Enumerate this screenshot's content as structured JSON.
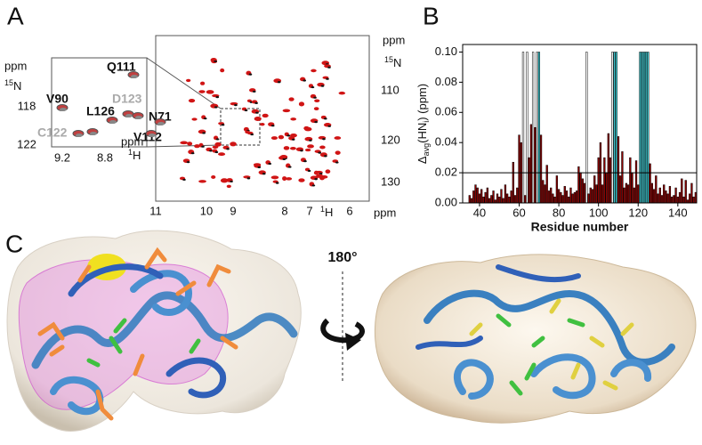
{
  "panel_labels": [
    "A",
    "B",
    "C"
  ],
  "spectrum": {
    "x_ticks": [
      11,
      10,
      9,
      8,
      7,
      6
    ],
    "y_ticks": [
      110,
      120,
      130
    ],
    "unit": "ppm",
    "h_nucleus": [
      "1",
      "H"
    ],
    "n_nucleus": [
      "15",
      "N"
    ]
  },
  "inset": {
    "x_ticks": [
      9.2,
      8.8
    ],
    "y_ticks": [
      118,
      122
    ],
    "unit": "ppm",
    "h_nucleus": [
      "1",
      "H"
    ],
    "n_nucleus": [
      "15",
      "N"
    ],
    "residues": [
      "Q111",
      "V90",
      "D123",
      "L126",
      "N71",
      "C122",
      "V112"
    ]
  },
  "chart_data": {
    "type": "bar",
    "x_label": "Residue number",
    "y_label": [
      "Δ",
      "avg",
      "(HN",
      "i",
      ") (ppm)"
    ],
    "xlim": [
      31.5,
      149.5
    ],
    "ylim": [
      0,
      0.105
    ],
    "xticks": [
      40,
      60,
      80,
      100,
      120,
      140
    ],
    "yticks": [
      {
        "value": 0,
        "label": "0.00"
      },
      {
        "value": 0.02,
        "label": "0.02"
      },
      {
        "value": 0.04,
        "label": "0.04"
      },
      {
        "value": 0.06,
        "label": "0.06"
      },
      {
        "value": 0.08,
        "label": "0.08"
      },
      {
        "value": 0.1,
        "label": "0.10"
      }
    ],
    "threshold": 0.02,
    "edge_color": "#000000",
    "series": [
      {
        "color": "#8b0000",
        "x": [
          35,
          36,
          37,
          38,
          39,
          40,
          41,
          42,
          43,
          44,
          45,
          46,
          47,
          48,
          49,
          50,
          51,
          52,
          53,
          54,
          55,
          56,
          57,
          58,
          59,
          60,
          61,
          63,
          65,
          66,
          68,
          71,
          72,
          73,
          74,
          75,
          76,
          77,
          78,
          79,
          80,
          81,
          82,
          83,
          84,
          85,
          86,
          87,
          88,
          89,
          90,
          91,
          92,
          93,
          95,
          96,
          97,
          98,
          99,
          100,
          101,
          102,
          103,
          104,
          105,
          106,
          110,
          111,
          112,
          113,
          114,
          115,
          116,
          117,
          118,
          119,
          120,
          126,
          127,
          128,
          129,
          130,
          131,
          132,
          133,
          134,
          135,
          136,
          137,
          138,
          139,
          140,
          141,
          142,
          143,
          144,
          145,
          146,
          147,
          148,
          149
        ],
        "values": [
          0.005,
          0.003,
          0.008,
          0.012,
          0.01,
          0.006,
          0.009,
          0.004,
          0.007,
          0.01,
          0.003,
          0.005,
          0.008,
          0.002,
          0.006,
          0.004,
          0.009,
          0.003,
          0.012,
          0.006,
          0.004,
          0.008,
          0.027,
          0.005,
          0.01,
          0.045,
          0.04,
          0.005,
          0.03,
          0.052,
          0.05,
          0.045,
          0.015,
          0.012,
          0.025,
          0.008,
          0.01,
          0.006,
          0.004,
          0.018,
          0.009,
          0.007,
          0.005,
          0.011,
          0.008,
          0.004,
          0.01,
          0.006,
          0.007,
          0.008,
          0.024,
          0.02,
          0.016,
          0.013,
          0.006,
          0.01,
          0.009,
          0.018,
          0.012,
          0.03,
          0.04,
          0.012,
          0.03,
          0.02,
          0.046,
          0.03,
          0.044,
          0.018,
          0.034,
          0.01,
          0.013,
          0.012,
          0.03,
          0.02,
          0.01,
          0.028,
          0.012,
          0.026,
          0.013,
          0.009,
          0.018,
          0.006,
          0.01,
          0.005,
          0.012,
          0.008,
          0.006,
          0.011,
          0.004,
          0.005,
          0.01,
          0.004,
          0.007,
          0.016,
          0.004,
          0.015,
          0.002,
          0.006,
          0.013,
          0.004,
          0.007
        ]
      },
      {
        "color": "#ffffff",
        "x": [
          62,
          64,
          67,
          69,
          94,
          107
        ],
        "values": [
          0.1,
          0.1,
          0.1,
          0.1,
          0.1,
          0.1
        ]
      },
      {
        "color": "#3cc8d0",
        "x": [
          70,
          108,
          109,
          121,
          122,
          123,
          124,
          125
        ],
        "values": [
          0.1,
          0.1,
          0.1,
          0.1,
          0.1,
          0.1,
          0.1,
          0.1
        ]
      }
    ]
  },
  "rotation_label": "180°"
}
